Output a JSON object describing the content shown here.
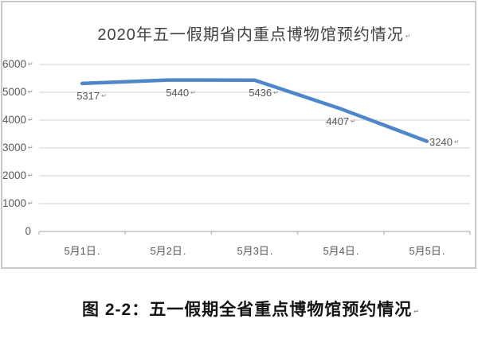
{
  "figure": {
    "background": "#ffffff",
    "frame_border_color": "#c9c9c9",
    "caption": {
      "text": "图 2-2：五一假期全省重点博物馆预约情况",
      "mark": "↵"
    }
  },
  "chart_data": {
    "type": "line",
    "title": "2020年五一假期省内重点博物馆预约情况",
    "title_mark": "↵",
    "categories": [
      "5月1日",
      "5月2日",
      "5月3日",
      "5月4日",
      "5月5日"
    ],
    "values": [
      5317,
      5440,
      5436,
      4407,
      3240
    ],
    "xlabel": "",
    "ylabel": "",
    "ylim": [
      0,
      6000
    ],
    "y_tick_interval": 1000,
    "grid": "horizontal-only",
    "legend": "none",
    "line_color": "#4e86c6",
    "gridline_color": "#d9d9d9",
    "axis_line_color": "#bfbfbf",
    "text_color": "#595959",
    "title_color": "#3f3f3f",
    "y_ticks": [
      {
        "text": "6000",
        "mark": "↵"
      },
      {
        "text": "5000",
        "mark": "↵"
      },
      {
        "text": "4000",
        "mark": "↵"
      },
      {
        "text": "3000",
        "mark": "↵"
      },
      {
        "text": "2000",
        "mark": "↵"
      },
      {
        "text": "1000",
        "mark": "↵"
      },
      {
        "text": "0",
        "mark": ""
      }
    ],
    "x_ticks": [
      {
        "text": "5月1日",
        "mark": "."
      },
      {
        "text": "5月2日",
        "mark": "."
      },
      {
        "text": "5月3日",
        "mark": "."
      },
      {
        "text": "5月4日",
        "mark": "."
      },
      {
        "text": "5月5日",
        "mark": "."
      }
    ],
    "data_labels": [
      {
        "text": "5317",
        "mark": "↵"
      },
      {
        "text": "5440",
        "mark": "↵"
      },
      {
        "text": "5436",
        "mark": "↵"
      },
      {
        "text": "4407",
        "mark": "↵"
      },
      {
        "text": "3240",
        "mark": "↵"
      }
    ]
  }
}
